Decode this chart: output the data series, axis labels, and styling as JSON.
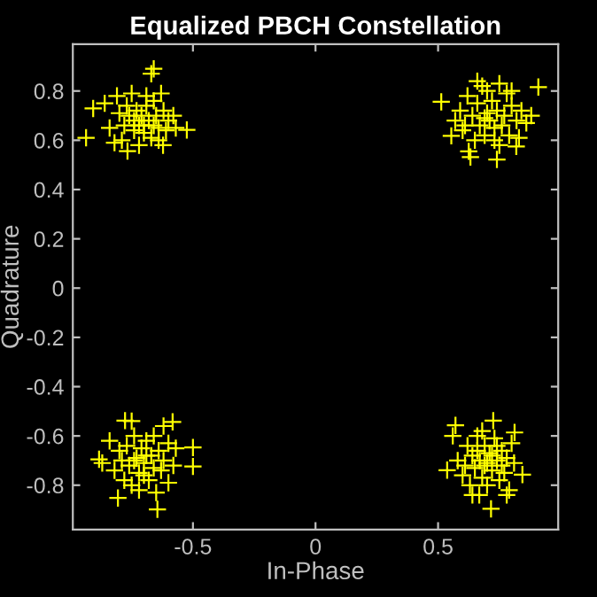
{
  "chart_data": {
    "type": "scatter",
    "title": "Equalized PBCH Constellation",
    "xlabel": "In-Phase",
    "ylabel": "Quadrature",
    "xlim": [
      -0.99,
      0.99
    ],
    "ylim": [
      -0.98,
      0.99
    ],
    "xticks": [
      -0.5,
      0,
      0.5
    ],
    "yticks": [
      -0.8,
      -0.6,
      -0.4,
      -0.2,
      0,
      0.2,
      0.4,
      0.6,
      0.8
    ],
    "grid": false,
    "marker": "cross",
    "series": [
      {
        "color": "#ffff00",
        "x": [
          -0.936,
          -0.907,
          -0.66,
          -0.67,
          -0.525,
          -0.767,
          -0.622,
          -0.86,
          -0.84,
          -0.81,
          -0.79,
          -0.75,
          -0.73,
          -0.72,
          -0.71,
          -0.7,
          -0.69,
          -0.68,
          -0.67,
          -0.66,
          -0.65,
          -0.64,
          -0.63,
          -0.62,
          -0.6,
          -0.58,
          -0.57,
          -0.74,
          -0.76,
          -0.78,
          -0.8,
          -0.82,
          -0.72,
          -0.69,
          -0.7,
          -0.74,
          -0.66,
          -0.64,
          -0.61,
          -0.77,
          0.513,
          0.909,
          0.74,
          0.632,
          0.625,
          0.819,
          0.554,
          0.57,
          0.59,
          0.6,
          0.62,
          0.64,
          0.65,
          0.66,
          0.67,
          0.68,
          0.69,
          0.7,
          0.71,
          0.72,
          0.73,
          0.74,
          0.75,
          0.76,
          0.77,
          0.78,
          0.79,
          0.8,
          0.82,
          0.84,
          0.86,
          0.83,
          0.88,
          0.7,
          0.66,
          0.73,
          0.69,
          0.75,
          0.61,
          0.8,
          -0.883,
          -0.87,
          -0.5,
          -0.5,
          -0.645,
          -0.806,
          -0.777,
          -0.75,
          -0.583,
          -0.62,
          -0.84,
          -0.82,
          -0.8,
          -0.78,
          -0.77,
          -0.76,
          -0.75,
          -0.74,
          -0.73,
          -0.72,
          -0.71,
          -0.7,
          -0.69,
          -0.68,
          -0.67,
          -0.66,
          -0.65,
          -0.64,
          -0.63,
          -0.62,
          -0.6,
          -0.58,
          -0.57,
          -0.6,
          -0.72,
          -0.74,
          -0.69,
          -0.66,
          -0.79,
          -0.7,
          0.537,
          0.571,
          0.725,
          0.812,
          0.844,
          0.716,
          0.668,
          0.64,
          0.56,
          0.58,
          0.6,
          0.62,
          0.63,
          0.64,
          0.65,
          0.66,
          0.67,
          0.68,
          0.69,
          0.7,
          0.71,
          0.72,
          0.73,
          0.74,
          0.75,
          0.76,
          0.77,
          0.78,
          0.79,
          0.8,
          0.81,
          0.78,
          0.66,
          0.72,
          0.69,
          0.74,
          0.61,
          0.76,
          0.7,
          0.68
        ],
        "values": [
          0.61,
          0.729,
          0.89,
          0.87,
          0.642,
          0.556,
          0.58,
          0.75,
          0.65,
          0.78,
          0.6,
          0.79,
          0.72,
          0.66,
          0.7,
          0.63,
          0.74,
          0.68,
          0.61,
          0.76,
          0.7,
          0.65,
          0.79,
          0.72,
          0.68,
          0.7,
          0.65,
          0.64,
          0.7,
          0.66,
          0.71,
          0.59,
          0.58,
          0.78,
          0.66,
          0.68,
          0.66,
          0.6,
          0.64,
          0.74,
          0.756,
          0.816,
          0.522,
          0.532,
          0.555,
          0.575,
          0.618,
          0.68,
          0.72,
          0.64,
          0.78,
          0.7,
          0.6,
          0.75,
          0.66,
          0.82,
          0.62,
          0.71,
          0.68,
          0.76,
          0.6,
          0.72,
          0.83,
          0.66,
          0.7,
          0.79,
          0.62,
          0.74,
          0.68,
          0.72,
          0.67,
          0.61,
          0.7,
          0.8,
          0.84,
          0.65,
          0.69,
          0.58,
          0.66,
          0.8,
          -0.695,
          -0.71,
          -0.647,
          -0.724,
          -0.898,
          -0.852,
          -0.538,
          -0.54,
          -0.543,
          -0.56,
          -0.62,
          -0.74,
          -0.66,
          -0.78,
          -0.64,
          -0.72,
          -0.8,
          -0.6,
          -0.69,
          -0.75,
          -0.65,
          -0.71,
          -0.62,
          -0.78,
          -0.68,
          -0.73,
          -0.83,
          -0.66,
          -0.74,
          -0.7,
          -0.79,
          -0.72,
          -0.65,
          -0.63,
          -0.82,
          -0.7,
          -0.68,
          -0.6,
          -0.7,
          -0.76,
          -0.739,
          -0.557,
          -0.538,
          -0.586,
          -0.757,
          -0.896,
          -0.84,
          -0.84,
          -0.6,
          -0.7,
          -0.76,
          -0.64,
          -0.8,
          -0.68,
          -0.73,
          -0.6,
          -0.7,
          -0.77,
          -0.64,
          -0.71,
          -0.67,
          -0.74,
          -0.61,
          -0.7,
          -0.78,
          -0.66,
          -0.75,
          -0.69,
          -0.82,
          -0.63,
          -0.71,
          -0.84,
          -0.66,
          -0.68,
          -0.72,
          -0.64,
          -0.72,
          -0.72,
          -0.8,
          -0.58
        ]
      }
    ]
  }
}
